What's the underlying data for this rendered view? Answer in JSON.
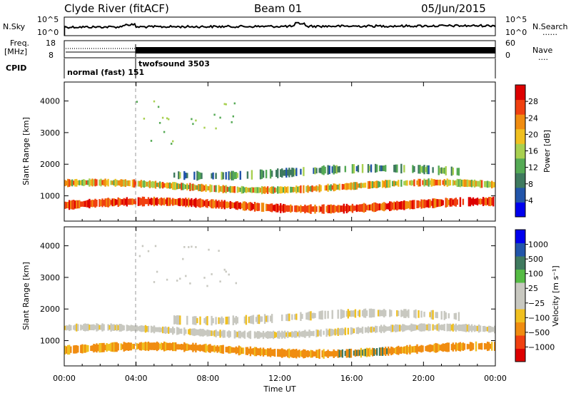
{
  "header": {
    "station": "Clyde River (fitACF)",
    "beam": "Beam 01",
    "date": "05/Jun/2015"
  },
  "nsky_panel": {
    "left_label": "N.Sky",
    "left_ticks": [
      "10^5",
      "10^0"
    ],
    "right_label": "N.Search",
    "right_ticks": [
      "10^5",
      "10^0"
    ],
    "right_legend": "......"
  },
  "freq_panel": {
    "left_label_1": "Freq.",
    "left_label_2": "[MHz]",
    "left_ticks": [
      "18",
      "8"
    ],
    "right_label": "Nave",
    "right_ticks": [
      "60",
      "0"
    ],
    "right_legend": "...."
  },
  "cpid_panel": {
    "label": "CPID",
    "mode1": "normal (fast) 151",
    "mode2": "twofsound 3503"
  },
  "colors": {
    "power_scale": [
      "#0000ee",
      "#2255aa",
      "#3f7a5f",
      "#55aa55",
      "#a8d050",
      "#f0c020",
      "#f08c10",
      "#f04010",
      "#dd0000"
    ],
    "velocity_scale": [
      "#dd0000",
      "#f04010",
      "#f08c10",
      "#f0c020",
      "#c8c8c0",
      "#c8c8c0",
      "#55bb44",
      "#3f7a5f",
      "#2255aa",
      "#0000ee"
    ]
  },
  "chart_data": [
    {
      "type": "heatmap",
      "name": "power",
      "ylabel": "Slant Range [km]",
      "yticks": [
        1000,
        2000,
        3000,
        4000
      ],
      "ylim": [
        200,
        4600
      ],
      "colorbar_label": "Power [dB]",
      "colorbar_ticks": [
        "28",
        "24",
        "20",
        "16",
        "12",
        "8",
        "4"
      ],
      "clim": [
        0,
        32
      ]
    },
    {
      "type": "heatmap",
      "name": "velocity",
      "ylabel": "Slant Range [km]",
      "yticks": [
        1000,
        2000,
        3000,
        4000
      ],
      "ylim": [
        200,
        4600
      ],
      "colorbar_label": "Velocity [m s⁻¹]",
      "colorbar_ticks": [
        "1000",
        "500",
        "100",
        "25",
        "−25",
        "−100",
        "−500",
        "−1000"
      ]
    }
  ],
  "x_axis": {
    "label": "Time UT",
    "ticks": [
      "00:00",
      "04:00",
      "08:00",
      "12:00",
      "16:00",
      "20:00",
      "00:00"
    ],
    "xlim_hours": [
      0,
      24
    ],
    "mode_change_hour": 4.0
  }
}
